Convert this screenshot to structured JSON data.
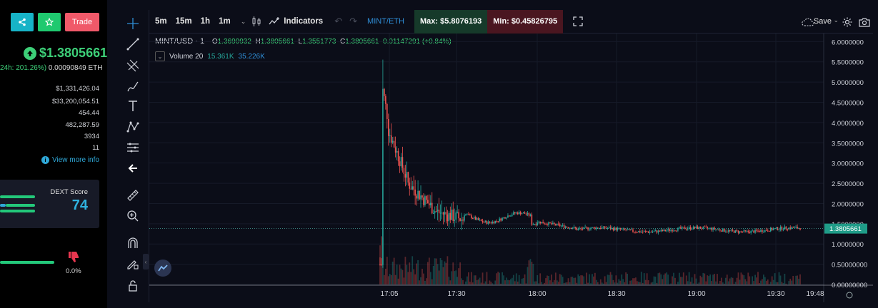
{
  "sidebar": {
    "trade_label": "Trade",
    "price": "$1.3805661",
    "change_pct": "24h: 201.26%)",
    "change_eth": "0.00090849 ETH",
    "stats": [
      "$1,331,426.04",
      "$33,200,054.51",
      "454.44",
      "482,287.59",
      "3934",
      "11"
    ],
    "view_more": "View more info",
    "dext_label": "DEXT Score",
    "dext_value": "74",
    "vote_pct": "0.0%"
  },
  "toolbar": {
    "timeframes": [
      "5m",
      "15m",
      "1h",
      "1m"
    ],
    "indicators": "Indicators",
    "pair": "MINT/ETH",
    "max": "Max: $5.8076193",
    "min": "Min: $0.45826795",
    "save": "Save"
  },
  "legend": {
    "title": "MINT/USD · 1",
    "o_key": "O",
    "o": "1.3690932",
    "h_key": "H",
    "h": "1.3805661",
    "l_key": "L",
    "l": "1.3551773",
    "c_key": "C",
    "c": "1.3805661",
    "change": "0.01147291 (+0.84%)",
    "volume_label": "Volume 20",
    "vol1": "15.361K",
    "vol2": "35.226K"
  },
  "colors": {
    "up": "#26a69a",
    "down": "#ef5350",
    "accent": "#2f8fd8"
  },
  "chart_data": {
    "type": "candlestick",
    "y_ticks": [
      "6.0000000",
      "5.5000000",
      "5.0000000",
      "4.5000000",
      "4.0000000",
      "3.5000000",
      "3.0000000",
      "2.5000000",
      "2.0000000",
      "1.5000000",
      "1.0000000",
      "0.50000000",
      "0.00000000"
    ],
    "ylim": [
      0,
      6.2
    ],
    "x_ticks": [
      "17:05",
      "17:30",
      "18:00",
      "18:30",
      "19:00",
      "19:30",
      "19:48"
    ],
    "current_price": 1.3805661,
    "current_price_label": "1.3805661"
  }
}
